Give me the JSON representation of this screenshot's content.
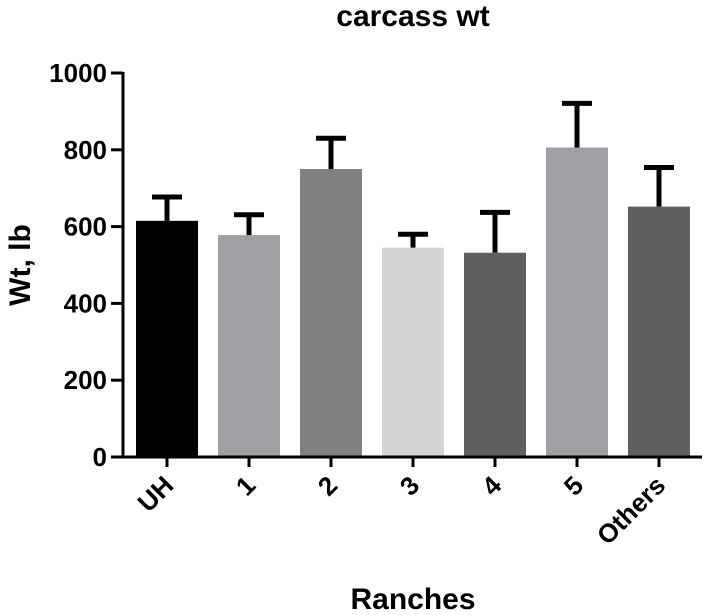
{
  "chart_data": {
    "type": "bar",
    "title": "carcass wt",
    "xlabel": "Ranches",
    "ylabel": "Wt, lb",
    "ylim": [
      0,
      1000
    ],
    "yticks": [
      0,
      200,
      400,
      600,
      800,
      1000
    ],
    "grid": false,
    "categories": [
      "UH",
      "1",
      "2",
      "3",
      "4",
      "5",
      "Others"
    ],
    "values": [
      615,
      578,
      750,
      545,
      532,
      806,
      652
    ],
    "error_upper": [
      62,
      53,
      80,
      35,
      105,
      115,
      102
    ],
    "colors": [
      "#000000",
      "#a0a0a4",
      "#808080",
      "#d4d4d4",
      "#606060",
      "#a0a0a4",
      "#606060"
    ]
  }
}
